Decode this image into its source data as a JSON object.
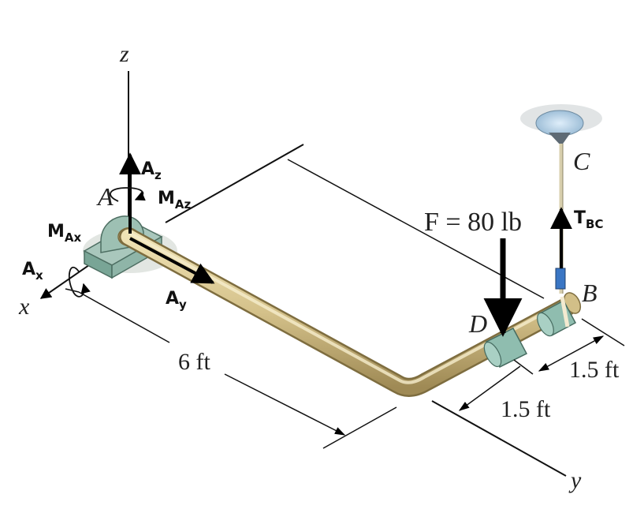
{
  "axes": {
    "z": "z",
    "x": "x",
    "y": "y"
  },
  "points": {
    "A": "A",
    "B": "B",
    "C": "C",
    "D": "D"
  },
  "reactions": {
    "Az": {
      "main": "A",
      "sub": "z"
    },
    "Ay": {
      "main": "A",
      "sub": "y"
    },
    "Ax": {
      "main": "A",
      "sub": "x"
    },
    "MAz": {
      "main": "M",
      "sub": "Az"
    },
    "MAx": {
      "main": "M",
      "sub": "Ax"
    },
    "TBC": {
      "main": "T",
      "sub": "BC"
    }
  },
  "force": {
    "label": "F = 80 lb"
  },
  "dimensions": {
    "AB_length": "6 ft",
    "DB_offset": "1.5 ft",
    "BC_offset": "1.5 ft"
  },
  "colors": {
    "pipe": "#d6c48e",
    "pipe_edge": "#8c7a48",
    "bearing": "#8fb5a8",
    "collar": "#7fb0a2",
    "arrow": "#000000",
    "ceiling": "#b9d3e6"
  }
}
